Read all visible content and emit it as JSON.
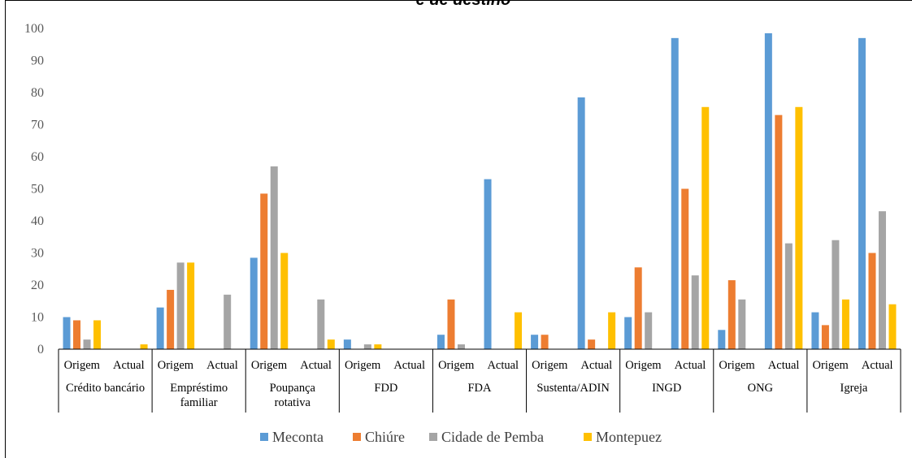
{
  "chart_data": {
    "type": "bar",
    "title": "e de destino",
    "ylim": [
      0,
      100
    ],
    "yticks": [
      0,
      10,
      20,
      30,
      40,
      50,
      60,
      70,
      80,
      90,
      100
    ],
    "grid": false,
    "legend_position": "bottom",
    "group_labels": [
      "Crédito bancário",
      "Empréstimo familiar",
      "Poupança rotativa",
      "FDD",
      "FDA",
      "Sustenta/ADIN",
      "INGD",
      "ONG",
      "Igreja"
    ],
    "sub_labels": [
      "Origem",
      "Actual"
    ],
    "series": [
      {
        "name": "Meconta",
        "color": "#5B9BD5",
        "values": [
          [
            10,
            0
          ],
          [
            13,
            0
          ],
          [
            28.5,
            0
          ],
          [
            3,
            0
          ],
          [
            4.5,
            53
          ],
          [
            4.5,
            78.5
          ],
          [
            10,
            97
          ],
          [
            6,
            98.5
          ],
          [
            11.5,
            97
          ]
        ]
      },
      {
        "name": "Chiúre",
        "color": "#ED7D31",
        "values": [
          [
            9,
            0
          ],
          [
            18.5,
            0
          ],
          [
            48.5,
            0
          ],
          [
            0,
            0
          ],
          [
            15.5,
            0
          ],
          [
            4.5,
            3
          ],
          [
            25.5,
            50
          ],
          [
            21.5,
            73
          ],
          [
            7.5,
            30
          ]
        ]
      },
      {
        "name": "Cidade de Pemba",
        "color": "#A5A5A5",
        "values": [
          [
            3,
            0
          ],
          [
            27,
            17
          ],
          [
            57,
            15.5
          ],
          [
            1.5,
            0
          ],
          [
            1.5,
            0
          ],
          [
            0,
            0
          ],
          [
            11.5,
            23
          ],
          [
            15.5,
            33
          ],
          [
            34,
            43
          ]
        ]
      },
      {
        "name": "Montepuez",
        "color": "#FFC000",
        "values": [
          [
            9,
            1.5
          ],
          [
            27,
            0
          ],
          [
            30,
            3
          ],
          [
            1.5,
            0
          ],
          [
            0,
            11.5
          ],
          [
            0,
            11.5
          ],
          [
            0,
            75.5
          ],
          [
            0,
            75.5
          ],
          [
            15.5,
            14
          ]
        ]
      }
    ]
  }
}
